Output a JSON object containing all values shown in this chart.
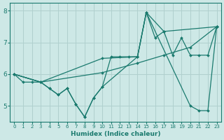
{
  "xlabel": "Humidex (Indice chaleur)",
  "xlim": [
    -0.5,
    23.5
  ],
  "ylim": [
    4.5,
    8.25
  ],
  "yticks": [
    5,
    6,
    7,
    8
  ],
  "xticks": [
    0,
    1,
    2,
    3,
    4,
    5,
    6,
    7,
    8,
    9,
    10,
    11,
    12,
    13,
    14,
    15,
    16,
    17,
    18,
    19,
    20,
    21,
    22,
    23
  ],
  "line_color": "#1a7a6e",
  "bg_color": "#cde8e6",
  "grid_color": "#b0d0ce",
  "lines": [
    {
      "x": [
        0,
        1,
        2,
        3,
        4,
        5,
        6,
        7,
        8,
        9,
        10,
        11,
        12,
        13,
        14,
        15,
        16,
        17,
        18,
        19,
        20,
        21,
        22,
        23
      ],
      "y": [
        6.0,
        5.75,
        5.75,
        5.75,
        5.55,
        5.35,
        5.55,
        5.05,
        4.65,
        5.25,
        5.6,
        6.55,
        6.55,
        6.55,
        6.55,
        7.95,
        7.15,
        7.35,
        6.6,
        7.15,
        6.6,
        6.6,
        6.6,
        7.5
      ]
    },
    {
      "x": [
        0,
        3,
        10,
        14,
        17,
        20,
        23
      ],
      "y": [
        6.0,
        5.75,
        6.05,
        6.35,
        6.6,
        6.85,
        7.5
      ]
    },
    {
      "x": [
        0,
        3,
        10,
        14,
        15,
        17,
        23
      ],
      "y": [
        6.0,
        5.75,
        6.5,
        6.55,
        7.95,
        7.35,
        7.5
      ]
    },
    {
      "x": [
        0,
        3,
        4,
        5,
        6,
        7,
        8,
        9,
        10,
        14,
        15,
        20,
        21,
        22,
        23
      ],
      "y": [
        6.0,
        5.75,
        5.55,
        5.35,
        5.55,
        5.05,
        4.65,
        5.25,
        5.6,
        6.55,
        7.95,
        5.0,
        4.85,
        4.85,
        7.5
      ]
    }
  ]
}
